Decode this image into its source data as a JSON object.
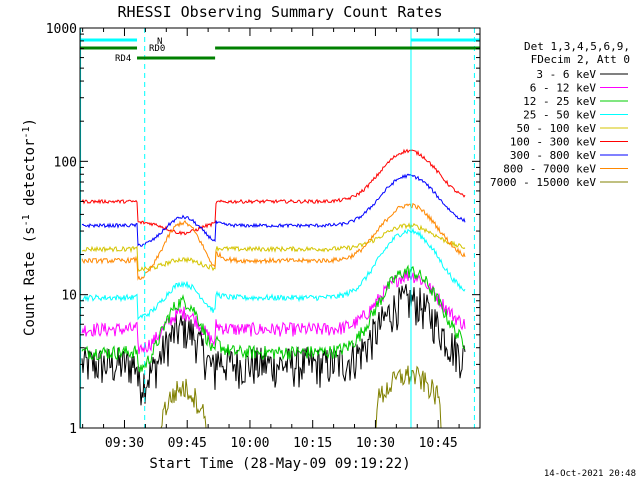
{
  "chart_data": {
    "type": "line",
    "title": "RHESSI Observing Summary Count Rates",
    "xlabel": "Start Time (28-May-09 09:19:22)",
    "ylabel_main": "Count Rate (s",
    "ylabel_sup1": "-1",
    "ylabel_mid": " detector",
    "ylabel_sup2": "-1",
    "ylabel_end": ")",
    "yscale": "log",
    "ylim": [
      1,
      1000
    ],
    "xlim": [
      "09:19:22",
      "10:55:00"
    ],
    "x_ticks": [
      "09:30",
      "09:45",
      "10:00",
      "10:15",
      "10:30",
      "10:45"
    ],
    "y_ticks": [
      "1",
      "10",
      "100",
      "1000"
    ],
    "timestamp": "14-Oct-2021 20:48",
    "legend_header": [
      "Det 1,3,4,5,6,9,",
      "FDecim 2, Att 0"
    ],
    "series": [
      {
        "name": "3 - 6 keV",
        "color": "#000000",
        "base": 3.0,
        "peak1": 6.5,
        "peak2": 9.0,
        "noise": 0.35
      },
      {
        "name": "6 - 12 keV",
        "color": "#ff00ff",
        "base": 5.5,
        "peak1": 9.0,
        "peak2": 14.0,
        "noise": 0.12
      },
      {
        "name": "12 - 25 keV",
        "color": "#00cc00",
        "base": 3.7,
        "peak1": 10.0,
        "peak2": 15.0,
        "noise": 0.12
      },
      {
        "name": "25 - 50 keV",
        "color": "#00ffff",
        "base": 9.5,
        "peak1": 15.0,
        "peak2": 30.0,
        "noise": 0.05
      },
      {
        "name": "50 - 100 keV",
        "color": "#d4c400",
        "base": 22.0,
        "peak1": 25.0,
        "peak2": 33.0,
        "noise": 0.04
      },
      {
        "name": "100 - 300 keV",
        "color": "#ff0000",
        "base": 50.0,
        "peak1": 44.0,
        "peak2": 120.0,
        "noise": 0.03
      },
      {
        "name": "300 - 800 keV",
        "color": "#0000ff",
        "base": 33.0,
        "peak1": 48.0,
        "peak2": 78.0,
        "noise": 0.03
      },
      {
        "name": "800 - 7000 keV",
        "color": "#ff8800",
        "base": 18.0,
        "peak1": 40.0,
        "peak2": 47.0,
        "noise": 0.04
      },
      {
        "name": "7000 - 15000 keV",
        "color": "#808000",
        "base": 1.0,
        "peak1": 2.3,
        "peak2": 2.5,
        "noise": 0.2
      }
    ],
    "flags": [
      {
        "label": "N",
        "color": "#00ffff",
        "segments": [
          [
            "09:19:22",
            "09:33:00"
          ],
          [
            "10:38:30",
            "10:55:00"
          ]
        ]
      },
      {
        "label": "RD0",
        "color": "#008000",
        "segments": [
          [
            "09:19:22",
            "09:33:00"
          ],
          [
            "09:51:40",
            "10:55:00"
          ]
        ]
      },
      {
        "label": "RD4",
        "color": "#008000",
        "segments": [
          [
            "09:33:00",
            "09:51:40"
          ]
        ]
      }
    ],
    "markers": [
      {
        "time": "09:19:30",
        "style": "solid",
        "color": "#00ffff"
      },
      {
        "time": "09:34:50",
        "style": "dashed",
        "color": "#00ffff"
      },
      {
        "time": "10:38:30",
        "style": "solid",
        "color": "#00ffff"
      },
      {
        "time": "10:53:40",
        "style": "dashed",
        "color": "#00ffff"
      }
    ],
    "attenuator_change_times": [
      "09:33:00",
      "09:51:40"
    ],
    "peaks": {
      "p1_center": "09:44:00",
      "p1_width_min": 5.5,
      "p2_center": "10:38:00",
      "p2_width_min": 8.0
    }
  }
}
